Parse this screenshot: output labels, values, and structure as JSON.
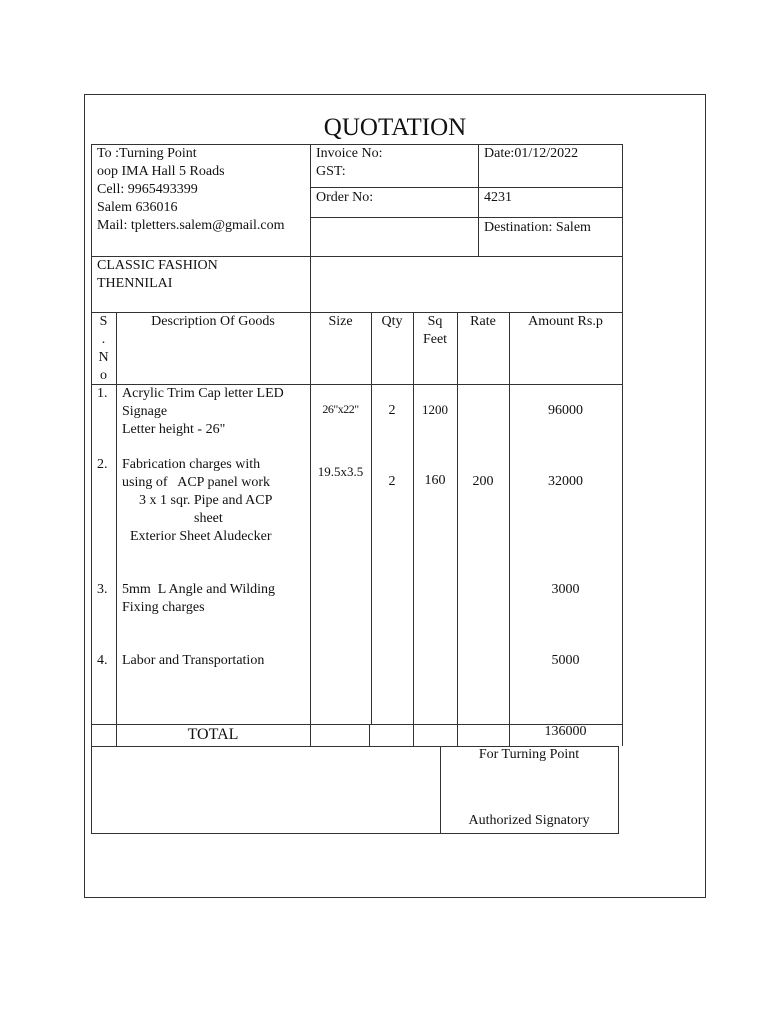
{
  "title": "QUOTATION",
  "to": {
    "lines": [
      "To :Turning Point",
      "oop IMA Hall 5 Roads",
      "Cell: 9965493399",
      "Salem 636016",
      "Mail: tpletters.salem@gmail.com"
    ]
  },
  "meta": {
    "invoice_no": "Invoice No:",
    "gst": "GST:",
    "date": "Date:01/12/2022",
    "order_no_label": "Order No:",
    "order_no": "4231",
    "destination": "Destination: Salem"
  },
  "customer": {
    "line1": "CLASSIC FASHION",
    "line2": "THENNILAI"
  },
  "columns": {
    "sno": [
      "S",
      ".",
      "N",
      "o"
    ],
    "description": "Description Of Goods",
    "size": "Size",
    "qty": "Qty",
    "sqft": [
      "Sq",
      "Feet"
    ],
    "rate": "Rate",
    "amount": "Amount Rs.p"
  },
  "items": [
    {
      "sno": "1.",
      "description": [
        "Acrylic Trim Cap letter LED",
        "Signage",
        "Letter height - 26\""
      ],
      "size": "26\"x22\"",
      "qty": "2",
      "sqft": "1200",
      "rate": "",
      "amount": "96000"
    },
    {
      "sno": "2.",
      "description": [
        "Fabrication charges with",
        "using of   ACP panel work",
        "3 x 1 sqr. Pipe and ACP",
        "sheet",
        "Exterior Sheet Aludecker"
      ],
      "size": "19.5x3.5",
      "qty": "2",
      "sqft": "160",
      "rate": "200",
      "amount": "32000"
    },
    {
      "sno": "3.",
      "description": [
        "5mm  L Angle and Wilding",
        "Fixing charges"
      ],
      "amount": "3000"
    },
    {
      "sno": "4.",
      "description": [
        "Labor and Transportation"
      ],
      "amount": "5000"
    }
  ],
  "total": {
    "label": "TOTAL",
    "amount": "136000"
  },
  "signature": {
    "for": "For Turning Point",
    "label": "Authorized Signatory"
  }
}
